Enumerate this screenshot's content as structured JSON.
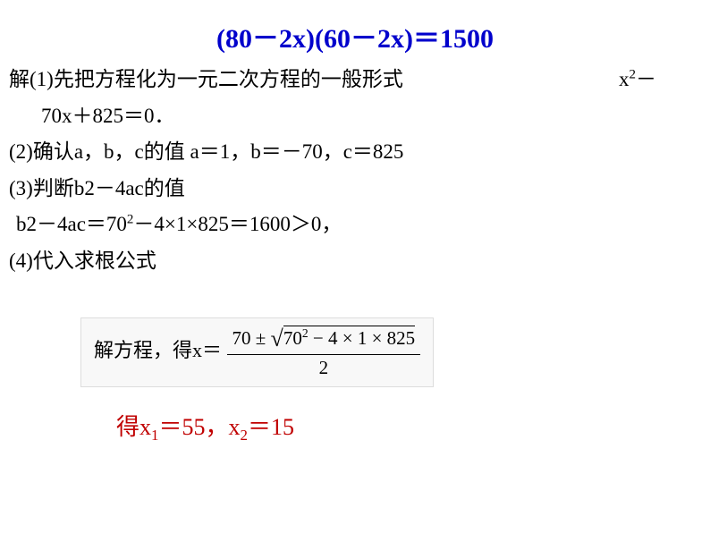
{
  "title": "(80－2x)(60－2x)＝1500",
  "step1": {
    "prefix": "解(1)先把方程化为一元二次方程的一般形式",
    "rhs_part1": "x",
    "rhs_sup": "2",
    "rhs_part2": "－",
    "cont": "70x＋825＝0．"
  },
  "step2": {
    "text_a": "(2)确认a，b，c的值 a＝1，b＝－70，c＝825"
  },
  "step3": {
    "head_a": "(3)判断b2－4ac的值",
    "body_a": "b2－4ac＝70",
    "body_sup": "2",
    "body_b": "－4×1×825＝1600＞0，"
  },
  "step4": {
    "text": "(4)代入求根公式"
  },
  "formula": {
    "left": "解方程，得x＝",
    "num_a": "70 ± ",
    "sqrt_a": "70",
    "sqrt_sup": "2",
    "sqrt_b": " − 4 × 1 × 825",
    "den": "2"
  },
  "result": {
    "a": "得x",
    "sub1": "1",
    "b": "＝55，x",
    "sub2": "2",
    "c": "＝15"
  },
  "colors": {
    "title": "#0000cc",
    "body": "#000000",
    "result": "#c00000",
    "background": "#ffffff",
    "formula_bg": "#f8f8f8"
  },
  "fonts": {
    "title_size": 30,
    "body_size": 23,
    "result_size": 26
  }
}
